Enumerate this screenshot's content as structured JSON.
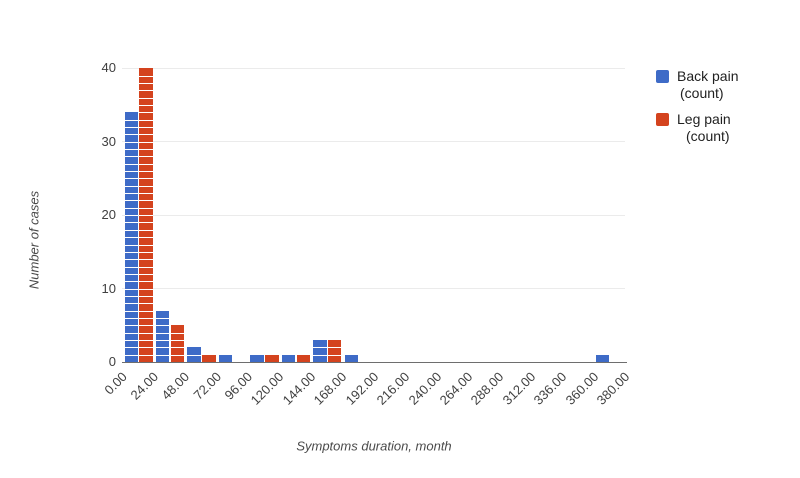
{
  "chart_data": {
    "type": "bar",
    "subtype": "histogram-grouped-columns",
    "title": "",
    "xlabel": "Symptoms duration, month",
    "ylabel": "Number of cases",
    "bucket_edges": [
      "0.00",
      "24.00",
      "48.00",
      "72.00",
      "96.00",
      "120.00",
      "144.00",
      "168.00",
      "192.00",
      "216.00",
      "240.00",
      "264.00",
      "288.00",
      "312.00",
      "336.00",
      "360.00",
      "380.00"
    ],
    "series": [
      {
        "name": "Back pain (count)",
        "color": "#3E6BC7",
        "values": [
          34,
          7,
          2,
          1,
          1,
          1,
          3,
          1,
          0,
          0,
          0,
          0,
          0,
          0,
          0,
          1
        ]
      },
      {
        "name": "Leg pain (count)",
        "color": "#D4431E",
        "values": [
          40,
          5,
          1,
          0,
          1,
          1,
          3,
          0,
          0,
          0,
          0,
          0,
          0,
          0,
          0,
          0
        ]
      }
    ],
    "y_ticks": [
      0,
      10,
      20,
      30,
      40
    ],
    "ylim": [
      0,
      40
    ],
    "grid": "horizontal",
    "gridline_color": "#ebebeb",
    "legend_position": "right",
    "item_dividers": true,
    "background": "#ffffff"
  },
  "axes": {
    "x_title": "Symptoms duration, month",
    "y_title": "Number of cases"
  },
  "legend": {
    "items": [
      {
        "label_line1": "Back pain",
        "label_line2": "(count)",
        "color": "#3E6BC7"
      },
      {
        "label_line1": "Leg pain",
        "label_line2": "(count)",
        "color": "#D4431E"
      }
    ]
  }
}
